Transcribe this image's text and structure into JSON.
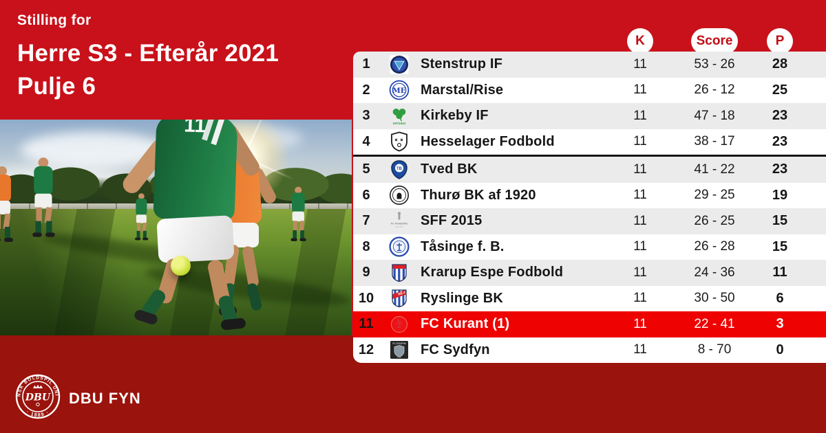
{
  "colors": {
    "background_top": "#C8111A",
    "background_bottom": "#9A130C",
    "highlight_row": "#EE0202",
    "zebra_row": "#EBEBEB",
    "pill_text": "#C00D15"
  },
  "header": {
    "eyebrow": "Stilling for",
    "title": "Herre S3 - Efterår 2021",
    "subtitle": "Pulje 6"
  },
  "photo": {
    "description": "soccer players on a sunlit pitch",
    "jersey_number": "11"
  },
  "table": {
    "column_headers": [
      {
        "key": "k",
        "label": "K"
      },
      {
        "key": "score",
        "label": "Score"
      },
      {
        "key": "p",
        "label": "P"
      }
    ],
    "rows": [
      {
        "pos": "1",
        "team": "Stenstrup IF",
        "logo": "stenstrup",
        "k": "11",
        "score": "53 - 26",
        "p": "28"
      },
      {
        "pos": "2",
        "team": "Marstal/Rise",
        "logo": "marstal",
        "k": "11",
        "score": "26 - 12",
        "p": "25"
      },
      {
        "pos": "3",
        "team": "Kirkeby IF",
        "logo": "kirkeby",
        "k": "11",
        "score": "47 - 18",
        "p": "23"
      },
      {
        "pos": "4",
        "team": "Hesselager Fodbold",
        "logo": "hesselager",
        "k": "11",
        "score": "38 - 17",
        "p": "23",
        "divider_below": true
      },
      {
        "pos": "5",
        "team": "Tved BK",
        "logo": "tved",
        "k": "11",
        "score": "41 - 22",
        "p": "23"
      },
      {
        "pos": "6",
        "team": "Thurø BK af 1920",
        "logo": "thuro",
        "k": "11",
        "score": "29 - 25",
        "p": "19"
      },
      {
        "pos": "7",
        "team": "SFF 2015",
        "logo": "sff",
        "k": "11",
        "score": "26 - 25",
        "p": "15"
      },
      {
        "pos": "8",
        "team": "Tåsinge f. B.",
        "logo": "taasinge",
        "k": "11",
        "score": "26 - 28",
        "p": "15"
      },
      {
        "pos": "9",
        "team": "Krarup Espe Fodbold",
        "logo": "krarup",
        "k": "11",
        "score": "24 - 36",
        "p": "11"
      },
      {
        "pos": "10",
        "team": "Ryslinge BK",
        "logo": "ryslinge",
        "k": "11",
        "score": "30 - 50",
        "p": "6"
      },
      {
        "pos": "11",
        "team": "FC Kurant (1)",
        "logo": "kurant",
        "k": "11",
        "score": "22 - 41",
        "p": "3",
        "highlight": true
      },
      {
        "pos": "12",
        "team": "FC Sydfyn",
        "logo": "sydfyn",
        "k": "11",
        "score": "8 - 70",
        "p": "0"
      }
    ]
  },
  "footer": {
    "brand": "DBU FYN",
    "crest_ring_text": "DANSK BOLDSPIL UNION",
    "crest_year": "· 1889 ·",
    "crest_monogram": "DBU"
  }
}
